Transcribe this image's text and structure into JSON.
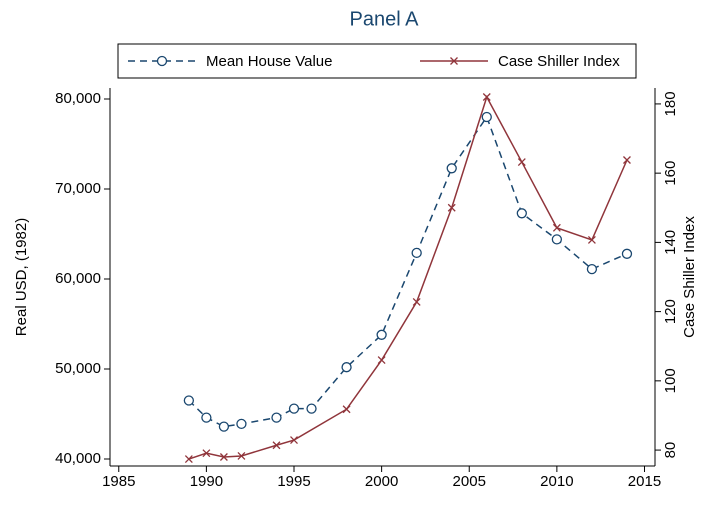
{
  "chart_data": {
    "type": "line",
    "title": "Panel A",
    "y_label": "Real USD, (1982)",
    "y2_label": "Case Shiller Index",
    "xlim": [
      1984.5,
      2015.6
    ],
    "xticks": [
      1985,
      1990,
      1995,
      2000,
      2005,
      2010,
      2015
    ],
    "ylim": [
      39222,
      81222
    ],
    "yticks": [
      {
        "value": 40000,
        "label": "40,000"
      },
      {
        "value": 50000,
        "label": "50,000"
      },
      {
        "value": 60000,
        "label": "60,000"
      },
      {
        "value": 70000,
        "label": "70,000"
      },
      {
        "value": 80000,
        "label": "80,000"
      }
    ],
    "y2lim": [
      75.4,
      184.6
    ],
    "y2ticks": [
      80,
      100,
      120,
      140,
      160,
      180
    ],
    "legend": "top",
    "series": [
      {
        "name": "Mean House Value",
        "color": "#1a476f",
        "marker": "circle",
        "dash": true,
        "x": [
          1989,
          1990,
          1991,
          1992,
          1994,
          1995,
          1996,
          1998,
          2000,
          2002,
          2004,
          2006,
          2008,
          2010,
          2012,
          2014
        ],
        "values": [
          46500,
          44600,
          43600,
          43900,
          44600,
          45600,
          45600,
          50200,
          53800,
          62900,
          72300,
          78000,
          67300,
          64400,
          61100,
          62800
        ]
      },
      {
        "name": "Case Shiller Index",
        "color": "#90353b",
        "marker": "x",
        "dash": false,
        "axis": "y2",
        "x": [
          1989,
          1990,
          1991,
          1992,
          1994,
          1995,
          1998,
          2000,
          2002,
          2004,
          2006,
          2008,
          2010,
          2012,
          2014
        ],
        "values": [
          77.4,
          79.1,
          78,
          78.3,
          81.4,
          82.9,
          91.8,
          106,
          122.8,
          150,
          182,
          163.2,
          144.2,
          140.7,
          163.8
        ]
      }
    ]
  }
}
